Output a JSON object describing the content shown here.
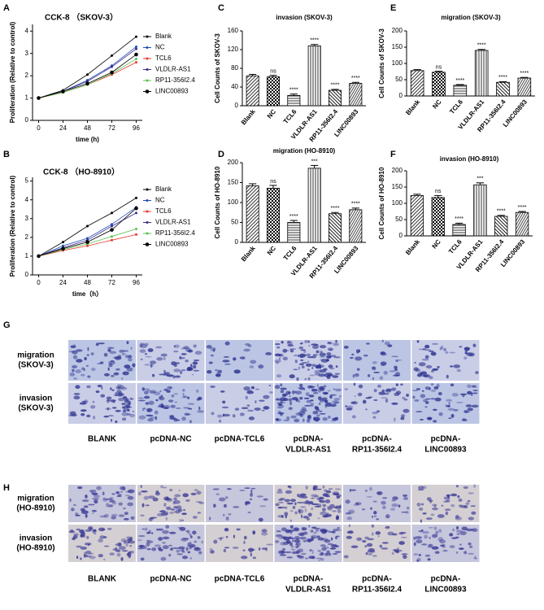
{
  "chart_data": [
    {
      "panel": "A",
      "type": "line",
      "title": "CCK-8 （SKOV-3）",
      "xlabel": "time (h)",
      "ylabel": "Proliferation (Relative to control)",
      "x": [
        0,
        24,
        48,
        72,
        96
      ],
      "xlim": [
        -6,
        102
      ],
      "xticks": [
        0,
        24,
        48,
        72,
        96
      ],
      "ylim": [
        0,
        4.3
      ],
      "yticks": [
        0,
        1,
        2,
        3,
        4
      ],
      "series": [
        {
          "name": "Blank",
          "color": "#000000",
          "values": [
            1,
            1.35,
            2.05,
            2.9,
            3.75
          ]
        },
        {
          "name": "NC",
          "color": "#1f4fb4",
          "values": [
            1,
            1.3,
            1.8,
            2.45,
            3.3
          ]
        },
        {
          "name": "TCL6",
          "color": "#e8392d",
          "values": [
            1,
            1.25,
            1.6,
            2.05,
            2.6
          ]
        },
        {
          "name": "VLDLR-AS1",
          "color": "#3a2d8f",
          "values": [
            1,
            1.3,
            1.75,
            2.4,
            3.2
          ]
        },
        {
          "name": "RP11-356I2.4",
          "color": "#5cc050",
          "values": [
            1,
            1.25,
            1.6,
            2.1,
            2.75
          ]
        },
        {
          "name": "LINC00893",
          "color": "#000000",
          "values": [
            1,
            1.3,
            1.65,
            2.15,
            2.95
          ]
        }
      ]
    },
    {
      "panel": "B",
      "type": "line",
      "title": "CCK-8 （HO-8910）",
      "xlabel": "time（h）",
      "ylabel": "Proliferation (Relative to control)",
      "x": [
        0,
        24,
        48,
        72,
        96
      ],
      "xlim": [
        -6,
        102
      ],
      "xticks": [
        0,
        24,
        48,
        72,
        96
      ],
      "ylim": [
        0,
        5.2
      ],
      "yticks": [
        0,
        1,
        2,
        3,
        4,
        5
      ],
      "series": [
        {
          "name": "Blank",
          "color": "#000000",
          "values": [
            1,
            1.75,
            2.6,
            3.3,
            4.1
          ]
        },
        {
          "name": "NC",
          "color": "#1f4fb4",
          "values": [
            1,
            1.55,
            1.95,
            2.7,
            3.6
          ]
        },
        {
          "name": "TCL6",
          "color": "#e8392d",
          "values": [
            1,
            1.3,
            1.55,
            1.85,
            2.15
          ]
        },
        {
          "name": "VLDLR-AS1",
          "color": "#3a2d8f",
          "values": [
            1,
            1.45,
            1.85,
            2.6,
            3.3
          ]
        },
        {
          "name": "RP11-356I2.4",
          "color": "#5cc050",
          "values": [
            1,
            1.35,
            1.65,
            2.05,
            2.45
          ]
        },
        {
          "name": "LINC00893",
          "color": "#000000",
          "values": [
            1,
            1.4,
            1.75,
            2.4,
            3.55
          ]
        }
      ]
    },
    {
      "panel": "C",
      "type": "bar",
      "title": "invasion (SKOV-3)",
      "ylabel": "Cell Counts of SKOV-3",
      "categories": [
        "Blank",
        "NC",
        "TCL6",
        "VLDLR-AS1",
        "RP11-356I2.4",
        "LINC00893"
      ],
      "values": [
        64,
        62,
        22,
        128,
        33,
        48
      ],
      "errors": [
        3,
        3,
        3,
        3,
        2,
        2
      ],
      "annotations": [
        null,
        "ns",
        "****",
        "****",
        "****",
        "****"
      ],
      "ylim": [
        0,
        160
      ],
      "yticks": [
        0,
        40,
        80,
        120,
        160
      ]
    },
    {
      "panel": "D",
      "type": "bar",
      "title": "migration (HO-8910)",
      "ylabel": "Cell Counts of HO-8910",
      "categories": [
        "Blank",
        "NC",
        "TCL6",
        "VLDLR-AS1",
        "RP11-356I2.4",
        "LINC00893"
      ],
      "values": [
        142,
        136,
        50,
        186,
        72,
        82
      ],
      "errors": [
        5,
        7,
        5,
        7,
        3,
        4
      ],
      "annotations": [
        null,
        "ns",
        "****",
        "***",
        "****",
        "****"
      ],
      "ylim": [
        0,
        200
      ],
      "yticks": [
        0,
        50,
        100,
        150,
        200
      ]
    },
    {
      "panel": "E",
      "type": "bar",
      "title": "migration (SKOV-3)",
      "ylabel": "Cell Counts of SKOV-3",
      "categories": [
        "Blank",
        "NC",
        "TCL6",
        "VLDLR-AS1",
        "RP11-356I2.4",
        "LINC00893"
      ],
      "values": [
        78,
        73,
        33,
        140,
        42,
        55
      ],
      "errors": [
        3,
        3,
        2,
        3,
        2,
        2
      ],
      "annotations": [
        null,
        "ns",
        "****",
        "****",
        "****",
        "****"
      ],
      "ylim": [
        0,
        200
      ],
      "yticks": [
        0,
        50,
        100,
        150,
        200
      ]
    },
    {
      "panel": "F",
      "type": "bar",
      "title": "invasion (HO-8910)",
      "ylabel": "Cell Counts of HO-8910",
      "categories": [
        "Blank",
        "NC",
        "TCL6",
        "VLDLR-AS1",
        "RP11-356I2.4",
        "LINC00893"
      ],
      "values": [
        124,
        118,
        35,
        157,
        60,
        72
      ],
      "errors": [
        4,
        6,
        4,
        6,
        3,
        3
      ],
      "annotations": [
        null,
        "ns",
        "****",
        "***",
        "****",
        "****"
      ],
      "ylim": [
        0,
        200
      ],
      "yticks": [
        0,
        50,
        100,
        150,
        200
      ]
    }
  ],
  "figures": [
    {
      "panel": "G",
      "rows": [
        [
          "migration",
          "(SKOV-3)"
        ],
        [
          "invasion",
          "(SKOV-3)"
        ]
      ],
      "columns": [
        [
          "BLANK"
        ],
        [
          "pcDNA-NC"
        ],
        [
          "pcDNA-TCL6"
        ],
        [
          "pcDNA-",
          "VLDLR-AS1"
        ],
        [
          "pcDNA-",
          "RP11-356I2.4"
        ],
        [
          "pcDNA-",
          "LINC00893"
        ]
      ]
    },
    {
      "panel": "H",
      "rows": [
        [
          "migration",
          "(HO-8910)"
        ],
        [
          "invasion",
          "(HO-8910)"
        ]
      ],
      "columns": [
        [
          "BLANK"
        ],
        [
          "pcDNA-NC"
        ],
        [
          "pcDNA-TCL6"
        ],
        [
          "pcDNA-",
          "VLDLR-AS1"
        ],
        [
          "pcDNA-",
          "RP11-356I2.4"
        ],
        [
          "pcDNA-",
          "LINC00893"
        ]
      ]
    }
  ]
}
